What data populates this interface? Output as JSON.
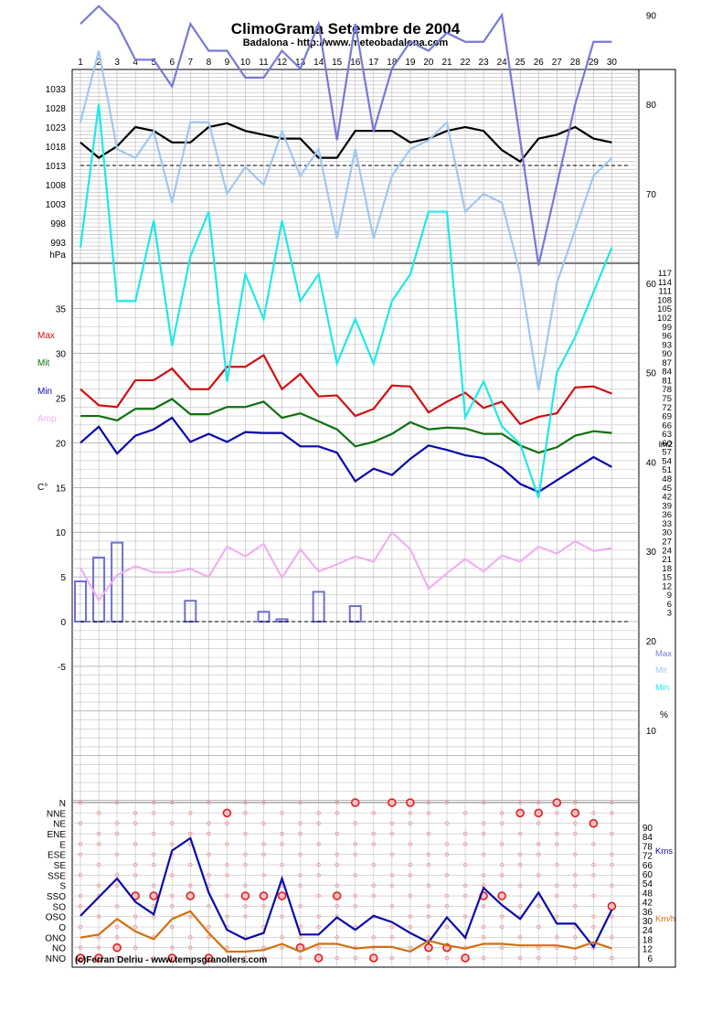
{
  "title": "ClimoGrama Setembre de 2004",
  "subtitle": "Badalona - http://www.meteobadalona.com",
  "credit": "(c)Ferran Delriu - www.tempsgranollers.com",
  "days": [
    1,
    2,
    3,
    4,
    5,
    6,
    7,
    8,
    9,
    10,
    11,
    12,
    13,
    14,
    15,
    16,
    17,
    18,
    19,
    20,
    21,
    22,
    23,
    24,
    25,
    26,
    27,
    28,
    29,
    30
  ],
  "colors": {
    "pressure": "#000000",
    "temp_max": "#d01010",
    "temp_mit": "#107010",
    "temp_min": "#0a0aaa",
    "temp_amp": "#f0b0f0",
    "rain": "#7070d0",
    "hum_max": "#7878d8",
    "hum_mit": "#a0c8f0",
    "hum_min": "#20e8e8",
    "wind_max": "#0a0aaa",
    "wind_mean": "#d07010",
    "wind_dir": "#e06060"
  },
  "chart_data": [
    {
      "type": "line",
      "name": "pressure",
      "ylabel": "hPa",
      "y_ticks": [
        993,
        998,
        1003,
        1008,
        1013,
        1018,
        1023,
        1028,
        1033
      ],
      "ylim": [
        988,
        1038
      ],
      "reference_line": 1013,
      "x": [
        1,
        2,
        3,
        4,
        5,
        6,
        7,
        8,
        9,
        10,
        11,
        12,
        13,
        14,
        15,
        16,
        17,
        18,
        19,
        20,
        21,
        22,
        23,
        24,
        25,
        26,
        27,
        28,
        29,
        30
      ],
      "values": [
        1019,
        1015,
        1018,
        1023,
        1022,
        1019,
        1019,
        1023,
        1024,
        1022,
        1021,
        1020,
        1020,
        1015,
        1015,
        1022,
        1022,
        1022,
        1019,
        1020,
        1022,
        1023,
        1022,
        1017,
        1014,
        1020,
        1021,
        1023,
        1020,
        1019
      ]
    },
    {
      "type": "line",
      "name": "temperature",
      "ylabel": "C°",
      "y_ticks": [
        0,
        5,
        10,
        15,
        20,
        25,
        30,
        35
      ],
      "y_ticks_neg": [
        "-5"
      ],
      "right_axis_label": "lm2",
      "right_ticks": [
        3,
        6,
        9,
        12,
        15,
        18,
        21,
        24,
        27,
        30,
        33,
        36,
        39,
        42,
        45,
        48,
        51,
        54,
        57,
        60,
        63,
        66,
        69,
        72,
        75,
        78,
        81,
        84,
        87,
        90,
        93,
        96,
        99,
        102,
        105,
        108,
        111,
        114,
        117
      ],
      "legend": [
        "Max",
        "Mit",
        "Min",
        "Amp"
      ],
      "x": [
        1,
        2,
        3,
        4,
        5,
        6,
        7,
        8,
        9,
        10,
        11,
        12,
        13,
        14,
        15,
        16,
        17,
        18,
        19,
        20,
        21,
        22,
        23,
        24,
        25,
        26,
        27,
        28,
        29,
        30
      ],
      "series": [
        {
          "name": "Max",
          "values": [
            26.0,
            24.2,
            24.0,
            27.0,
            27.0,
            28.3,
            26.0,
            26.0,
            28.5,
            28.5,
            29.8,
            26.0,
            27.7,
            25.2,
            25.3,
            23.0,
            23.8,
            26.4,
            26.3,
            23.4,
            24.6,
            25.6,
            23.9,
            24.6,
            22.1,
            22.9,
            23.3,
            26.2,
            26.3,
            25.5
          ]
        },
        {
          "name": "Mit",
          "values": [
            23.0,
            23.0,
            22.5,
            23.8,
            23.8,
            24.9,
            23.2,
            23.2,
            24.0,
            24.0,
            24.6,
            22.8,
            23.3,
            22.4,
            21.5,
            19.6,
            20.1,
            21.0,
            22.3,
            21.5,
            21.7,
            21.6,
            21.0,
            21.0,
            19.7,
            18.9,
            19.5,
            20.8,
            21.3,
            21.1
          ]
        },
        {
          "name": "Min",
          "values": [
            20.0,
            21.8,
            18.8,
            20.8,
            21.5,
            22.8,
            20.1,
            21.0,
            20.1,
            21.2,
            21.1,
            21.1,
            19.6,
            19.6,
            18.9,
            15.7,
            17.1,
            16.4,
            18.2,
            19.7,
            19.2,
            18.6,
            18.3,
            17.2,
            15.4,
            14.5,
            15.8,
            17.1,
            18.4,
            17.3
          ]
        },
        {
          "name": "Amp",
          "values": [
            6.0,
            2.4,
            5.2,
            6.2,
            5.5,
            5.5,
            5.9,
            5.0,
            8.4,
            7.3,
            8.7,
            4.9,
            8.1,
            5.6,
            6.4,
            7.3,
            6.7,
            10.0,
            8.1,
            3.7,
            5.4,
            7.0,
            5.6,
            7.4,
            6.7,
            8.4,
            7.6,
            9.0,
            7.9,
            8.2
          ]
        }
      ]
    },
    {
      "type": "bar",
      "name": "rain",
      "x": [
        1,
        2,
        3,
        7,
        11,
        12,
        14,
        16
      ],
      "values": [
        13.5,
        21.5,
        26.5,
        7.0,
        3.3,
        0.8,
        10.0,
        5.2
      ]
    },
    {
      "type": "line",
      "name": "humidity",
      "ylabel": "%",
      "y_ticks": [
        10,
        20,
        30,
        40,
        50,
        60,
        70,
        80,
        90
      ],
      "ylim": [
        0,
        100
      ],
      "legend": [
        "Max",
        "Mit",
        "Min"
      ],
      "x": [
        1,
        2,
        3,
        4,
        5,
        6,
        7,
        8,
        9,
        10,
        11,
        12,
        13,
        14,
        15,
        16,
        17,
        18,
        19,
        20,
        21,
        22,
        23,
        24,
        25,
        26,
        27,
        28,
        29,
        30
      ],
      "series": [
        {
          "name": "Max",
          "values": [
            89,
            91,
            89,
            85,
            85,
            82,
            89,
            86,
            86,
            83,
            83,
            86,
            84,
            89,
            76,
            89,
            77,
            84,
            87,
            86,
            88,
            87,
            87,
            90,
            76,
            62,
            71,
            80,
            87,
            87
          ]
        },
        {
          "name": "Mit",
          "values": [
            78,
            86,
            75,
            74,
            77,
            69,
            78,
            78,
            70,
            73,
            71,
            77,
            72,
            75,
            65,
            75,
            65,
            72,
            75,
            76,
            78,
            68,
            70,
            69,
            61,
            48,
            60,
            66,
            72,
            74
          ]
        },
        {
          "name": "Min",
          "values": [
            64,
            80,
            58,
            58,
            67,
            53,
            63,
            68,
            49,
            61,
            56,
            67,
            58,
            61,
            51,
            56,
            51,
            58,
            61,
            68,
            68,
            45,
            49,
            44,
            42,
            36,
            50,
            54,
            59,
            64
          ]
        }
      ]
    },
    {
      "type": "scatter",
      "name": "wind",
      "y_categories": [
        "NNO",
        "NO",
        "ONO",
        "O",
        "OSO",
        "SO",
        "SSO",
        "S",
        "SSE",
        "SE",
        "ESE",
        "E",
        "ENE",
        "NE",
        "NNE",
        "N"
      ],
      "right_axis_label": "Kms",
      "right_axis_label2": "Km/h",
      "right_ticks": [
        6,
        12,
        18,
        24,
        30,
        36,
        42,
        48,
        54,
        60,
        66,
        72,
        78,
        84,
        90
      ],
      "x": [
        1,
        2,
        3,
        4,
        5,
        6,
        7,
        8,
        9,
        10,
        11,
        12,
        13,
        14,
        15,
        16,
        17,
        18,
        19,
        20,
        21,
        22,
        23,
        24,
        25,
        26,
        27,
        28,
        29,
        30
      ],
      "dominant_direction": [
        "NNO",
        "NNO",
        "NO",
        "SSO",
        "SSO",
        "NNO",
        "SSO",
        "NNO",
        "NNE",
        "SSO",
        "SSO",
        "SSO",
        "NO",
        "NNO",
        "SSO",
        "N",
        "NNO",
        "N",
        "N",
        "NO",
        "NO",
        "NNO",
        "SSO",
        "SSO",
        "NNE",
        "NNE",
        "N",
        "NNE",
        "NE",
        "SO"
      ],
      "series": [
        {
          "name": "Max",
          "values": [
            33,
            45,
            57,
            42,
            34,
            75,
            83,
            48,
            24,
            18,
            22,
            57,
            21,
            21,
            32,
            24,
            33,
            29,
            22,
            16,
            32,
            19,
            51,
            40,
            31,
            48,
            28,
            28,
            13,
            37
          ]
        },
        {
          "name": "Mean",
          "values": [
            19,
            21,
            31,
            23,
            18,
            31,
            36,
            22,
            10,
            10,
            11,
            15,
            10,
            15,
            15,
            12,
            13,
            13,
            10,
            17,
            14,
            12,
            15,
            15,
            14,
            14,
            14,
            12,
            16,
            12
          ]
        }
      ]
    }
  ]
}
